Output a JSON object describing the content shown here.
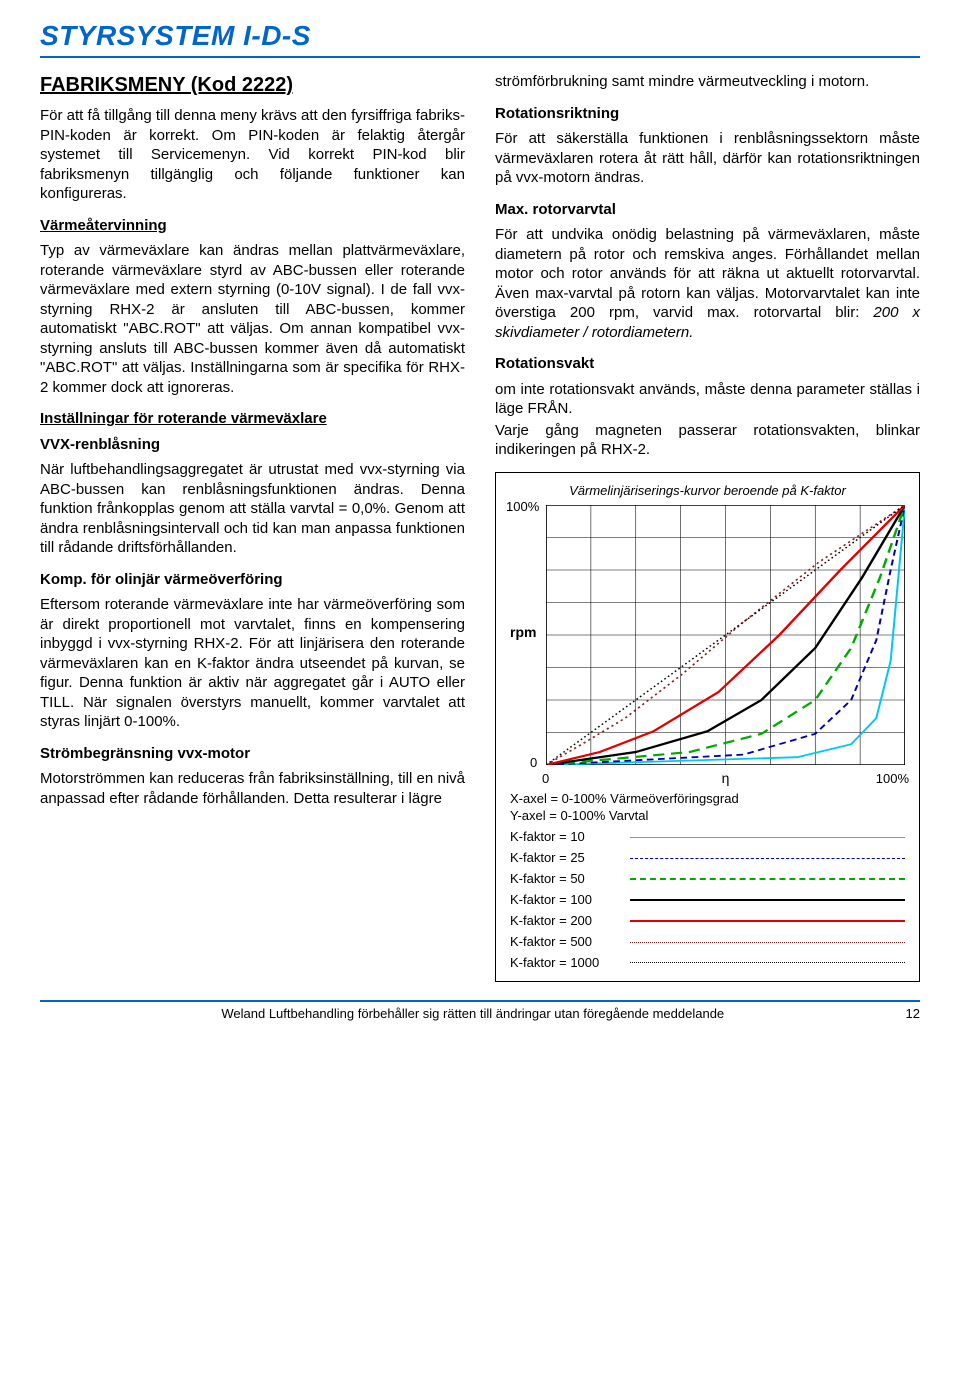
{
  "header": {
    "title": "STYRSYSTEM I-D-S"
  },
  "left": {
    "section_title": "FABRIKSMENY (Kod 2222)",
    "p1": "För att få tillgång till denna meny krävs att den fyrsiffriga fabriks-PIN-koden är korrekt. Om PIN-koden är felaktig återgår systemet till Servicemenyn. Vid korrekt PIN-kod blir fabriksmenyn tillgänglig och följande funktioner kan konfigureras.",
    "h_varme": "Värmeåtervinning",
    "p2": "Typ av värmeväxlare kan ändras mellan plattvärmeväxlare, roterande värmeväxlare styrd av ABC-bussen eller roterande värmeväxlare med extern styrning (0-10V signal). I de fall vvx-styrning RHX-2 är ansluten till ABC-bussen, kommer automatiskt \"ABC.ROT\" att väljas. Om annan kompatibel vvx-styrning ansluts till ABC-bussen kommer även då automatiskt \"ABC.ROT\" att väljas. Inställningarna som är specifika för RHX-2 kommer dock att ignoreras.",
    "h_install": "Inställningar för roterande värmeväxlare",
    "h_vvx": "VVX-renblåsning",
    "p3": "När luftbehandlingsaggregatet är utrustat med vvx-styrning via ABC-bussen kan renblåsningsfunktionen ändras. Denna funktion frånkopplas genom att ställa varvtal = 0,0%. Genom att ändra renblåsningsintervall och tid kan man anpassa funktionen till rådande driftsförhållanden.",
    "h_komp": "Komp. för olinjär värmeöverföring",
    "p4": "Eftersom roterande värmeväxlare inte har värmeöverföring som är direkt proportionell mot varvtalet, finns en kompensering inbyggd i vvx-styrning RHX-2. För att linjärisera den roterande värmeväxlaren kan en K-faktor ändra utseendet på kurvan, se figur. Denna funktion är aktiv när aggregatet går i AUTO eller TILL. När signalen överstyrs manuellt, kommer varvtalet att styras linjärt 0-100%.",
    "h_strom": "Strömbegränsning vvx-motor",
    "p5": "Motorströmmen kan reduceras från fabriksinställning, till en nivå anpassad efter rådande förhållanden. Detta resulterar i lägre"
  },
  "right": {
    "p1": "strömförbrukning samt mindre värmeutveckling i motorn.",
    "h_rot": "Rotationsriktning",
    "p2": "För att säkerställa funktionen i renblåsningssektorn måste värmeväxlaren rotera åt rätt håll, därför kan rotationsriktningen på vvx-motorn ändras.",
    "h_max": "Max. rotorvarvtal",
    "p3a": "För att undvika onödig belastning på värmeväxlaren, måste diametern på rotor och remskiva anges. Förhållandet mellan motor och rotor används för att räkna ut aktuellt rotorvarvtal. Även max-varvtal på rotorn kan väljas. Motorvarvtalet kan inte överstiga 200 rpm, varvid max. rotorvartal blir: ",
    "p3b": "200 x skivdiameter / rotordiametern.",
    "h_vakt": "Rotationsvakt",
    "p4": "om inte rotationsvakt används, måste denna parameter ställas i läge FRÅN.",
    "p5": "Varje gång magneten passerar rotationsvakten, blinkar indikeringen på RHX-2."
  },
  "chart": {
    "title": "Värmelinjäriserings-kurvor beroende på K-faktor",
    "y_top": "100%",
    "y_mid": "rpm",
    "y_bot": "0",
    "x_left": "0",
    "x_mid": "η",
    "x_right": "100%",
    "axis_x_info": "X-axel = 0-100% Värmeöverföringsgrad",
    "axis_y_info": "Y-axel = 0-100% Varvtal",
    "xlim": [
      0,
      100
    ],
    "ylim": [
      0,
      100
    ],
    "grid_cols": 8,
    "grid_rows": 8,
    "background": "#ffffff",
    "grid_color": "#000000",
    "grid_stroke": 0.5,
    "curves": [
      {
        "k": 10,
        "color": "#00c8f0",
        "dash": "",
        "width": 1.8,
        "pts": [
          [
            0,
            0
          ],
          [
            70,
            3
          ],
          [
            85,
            8
          ],
          [
            92,
            18
          ],
          [
            96,
            40
          ],
          [
            98,
            70
          ],
          [
            100,
            100
          ]
        ]
      },
      {
        "k": 25,
        "color": "#0000aa",
        "dash": "6,4",
        "width": 1.8,
        "pts": [
          [
            0,
            0
          ],
          [
            55,
            4
          ],
          [
            75,
            12
          ],
          [
            85,
            25
          ],
          [
            92,
            48
          ],
          [
            96,
            75
          ],
          [
            100,
            100
          ]
        ]
      },
      {
        "k": 50,
        "color": "#00aa00",
        "dash": "10,6",
        "width": 2.2,
        "pts": [
          [
            0,
            0
          ],
          [
            40,
            5
          ],
          [
            60,
            12
          ],
          [
            75,
            25
          ],
          [
            85,
            45
          ],
          [
            93,
            72
          ],
          [
            100,
            100
          ]
        ]
      },
      {
        "k": 100,
        "color": "#000000",
        "dash": "",
        "width": 2.2,
        "pts": [
          [
            0,
            0
          ],
          [
            25,
            5
          ],
          [
            45,
            13
          ],
          [
            60,
            25
          ],
          [
            75,
            45
          ],
          [
            88,
            72
          ],
          [
            100,
            100
          ]
        ]
      },
      {
        "k": 200,
        "color": "#e00000",
        "dash": "",
        "width": 2.2,
        "pts": [
          [
            0,
            0
          ],
          [
            15,
            5
          ],
          [
            30,
            13
          ],
          [
            48,
            28
          ],
          [
            65,
            50
          ],
          [
            82,
            75
          ],
          [
            100,
            100
          ]
        ]
      },
      {
        "k": 500,
        "color": "#8b2222",
        "dash": "2,3",
        "width": 1.6,
        "pts": [
          [
            0,
            0
          ],
          [
            10,
            8
          ],
          [
            22,
            18
          ],
          [
            38,
            35
          ],
          [
            55,
            55
          ],
          [
            76,
            78
          ],
          [
            100,
            100
          ]
        ]
      },
      {
        "k": 1000,
        "color": "#000000",
        "dash": "1.5,2.5",
        "width": 1.4,
        "pts": [
          [
            0,
            0
          ],
          [
            100,
            100
          ]
        ]
      }
    ],
    "legend": [
      {
        "label": "K-faktor = 10",
        "color": "#00c8f0",
        "dash": "",
        "width": 1.8
      },
      {
        "label": "K-faktor = 25",
        "color": "#0000aa",
        "dash": "6,4",
        "width": 1.8
      },
      {
        "label": "K-faktor = 50",
        "color": "#00aa00",
        "dash": "10,6",
        "width": 2.2
      },
      {
        "label": "K-faktor = 100",
        "color": "#000000",
        "dash": "",
        "width": 2.2
      },
      {
        "label": "K-faktor = 200",
        "color": "#e00000",
        "dash": "",
        "width": 2.2
      },
      {
        "label": "K-faktor = 500",
        "color": "#8b2222",
        "dash": "2,3",
        "width": 1.6
      },
      {
        "label": "K-faktor = 1000",
        "color": "#000000",
        "dash": "1.5,2.5",
        "width": 1.4
      }
    ]
  },
  "footer": {
    "text": "Weland Luftbehandling förbehåller sig rätten till ändringar utan föregående meddelande",
    "page": "12"
  }
}
